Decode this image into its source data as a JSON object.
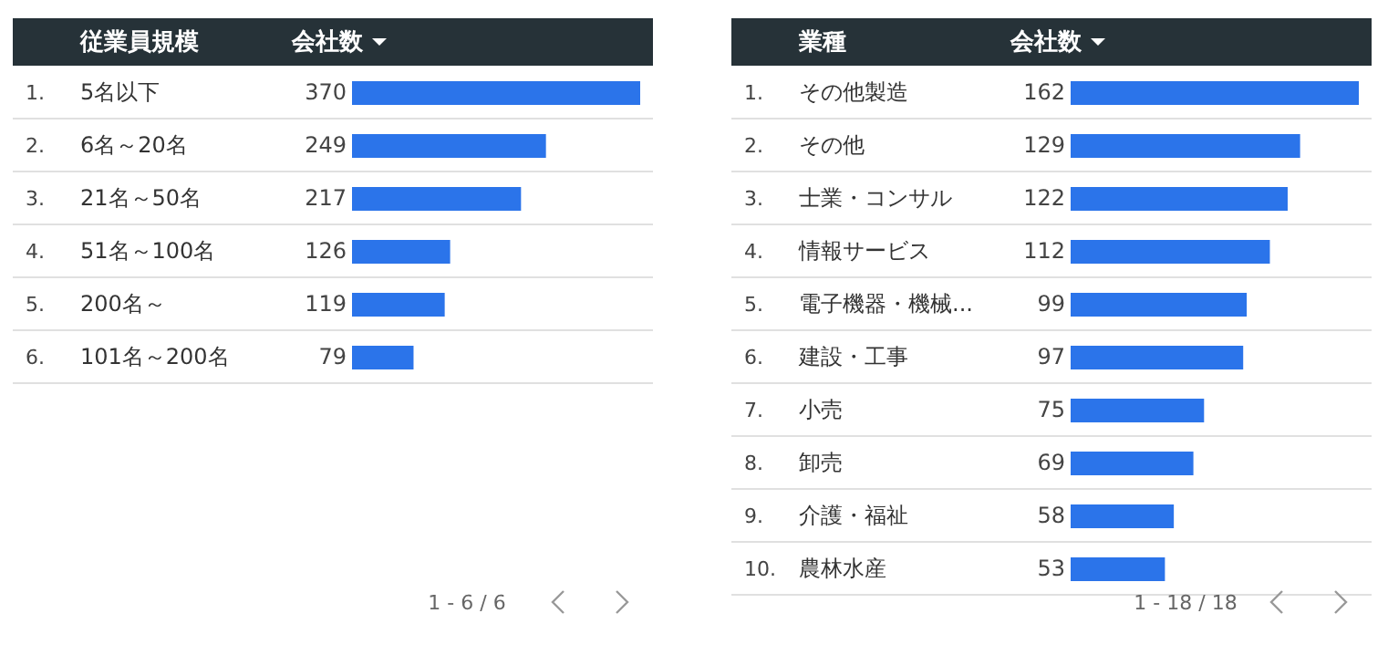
{
  "chart_data": [
    {
      "type": "bar",
      "orientation": "horizontal",
      "ylabel": "従業員規模",
      "xlabel": "会社数",
      "categories": [
        "5名以下",
        "6名～20名",
        "21名～50名",
        "51名～100名",
        "200名～",
        "101名～200名"
      ],
      "values": [
        370,
        249,
        217,
        126,
        119,
        79
      ],
      "color": "#2b74ea",
      "data_labels": true,
      "annotations": [
        "1.",
        "2.",
        "3.",
        "4.",
        "5.",
        "6.",
        "1 - 6 / 6"
      ]
    },
    {
      "type": "bar",
      "orientation": "horizontal",
      "ylabel": "業種",
      "xlabel": "会社数",
      "categories": [
        "その他製造",
        "その他",
        "士業・コンサル",
        "情報サービス",
        "電子機器・機械...",
        "建設・工事",
        "小売",
        "卸売",
        "介護・福祉",
        "農林水産"
      ],
      "values": [
        162,
        129,
        122,
        112,
        99,
        97,
        75,
        69,
        58,
        53
      ],
      "color": "#2b74ea",
      "data_labels": true,
      "annotations": [
        "1.",
        "2.",
        "3.",
        "4.",
        "5.",
        "6.",
        "7.",
        "8.",
        "9.",
        "10.",
        "1 - 18 / 18"
      ]
    }
  ]
}
